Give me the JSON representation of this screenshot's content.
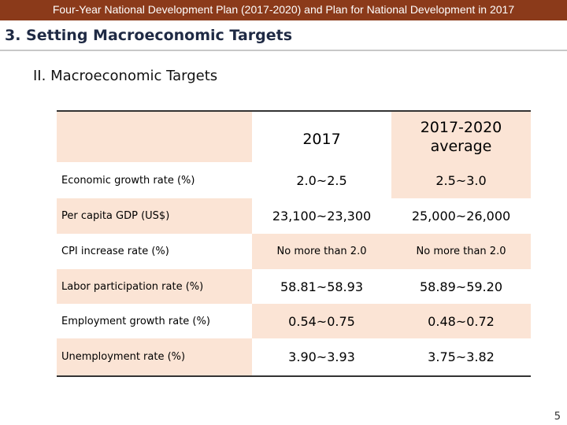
{
  "header": {
    "title": "Four-Year National Development Plan (2017-2020) and Plan for National Development in 2017"
  },
  "section": {
    "title": "3. Setting Macroeconomic Targets"
  },
  "subtitle": {
    "numeral": "II.",
    "text": "Macroeconomic Targets"
  },
  "table": {
    "columns": [
      "",
      "2017",
      "2017-2020",
      "average"
    ],
    "rows": [
      {
        "label": "Economic growth rate (%)",
        "v2017": "2.0~2.5",
        "avg": "2.5~3.0"
      },
      {
        "label": "Per capita GDP (US$)",
        "v2017": "23,100~23,300",
        "avg": "25,000~26,000"
      },
      {
        "label": "CPI increase rate (%)",
        "v2017": "No more than 2.0",
        "avg": "No more than 2.0"
      },
      {
        "label": "Labor participation rate (%)",
        "v2017": "58.81~58.93",
        "avg": "58.89~59.20"
      },
      {
        "label": "Employment growth rate (%)",
        "v2017": "0.54~0.75",
        "avg": "0.48~0.72"
      },
      {
        "label": "Unemployment rate (%)",
        "v2017": "3.90~3.93",
        "avg": "3.75~3.82"
      }
    ]
  },
  "page": {
    "number": "5"
  },
  "colors": {
    "header_bar": "#8b3a1a",
    "section_title": "#1f2a44",
    "row_shade": "#fbe4d5"
  }
}
